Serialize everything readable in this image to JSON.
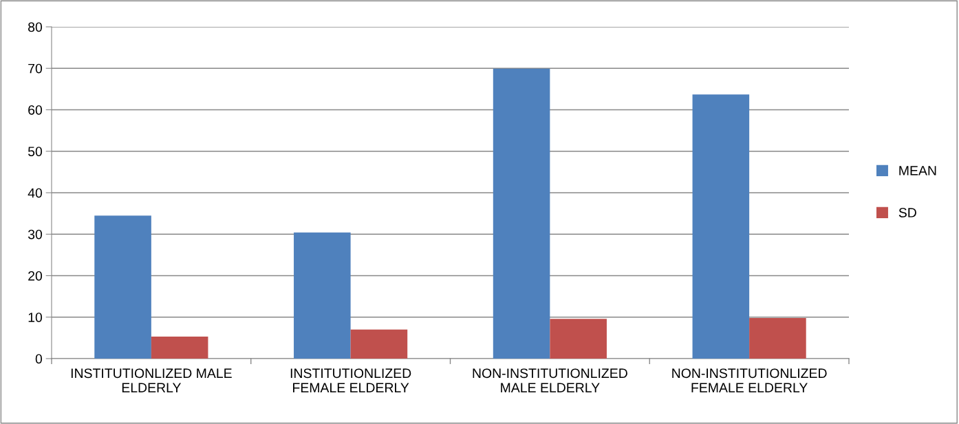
{
  "chart_data": {
    "type": "bar",
    "categories": [
      "INSTITUTIONLIZED MALE\nELDERLY",
      "INSTITUTIONLIZED\nFEMALE ELDERLY",
      "NON-INSTITUTIONLIZED\nMALE ELDERLY",
      "NON-INSTITUTIONLIZED\nFEMALE ELDERLY"
    ],
    "series": [
      {
        "name": "MEAN",
        "color": "#4f81bd",
        "values": [
          34.5,
          30.4,
          69.9,
          63.7
        ]
      },
      {
        "name": "SD",
        "color": "#c0504d",
        "values": [
          5.3,
          7.0,
          9.6,
          9.8
        ]
      }
    ],
    "ylim": [
      0,
      80
    ],
    "yticks": [
      0,
      10,
      20,
      30,
      40,
      50,
      60,
      70,
      80
    ],
    "grid": "y",
    "legend": "right"
  }
}
